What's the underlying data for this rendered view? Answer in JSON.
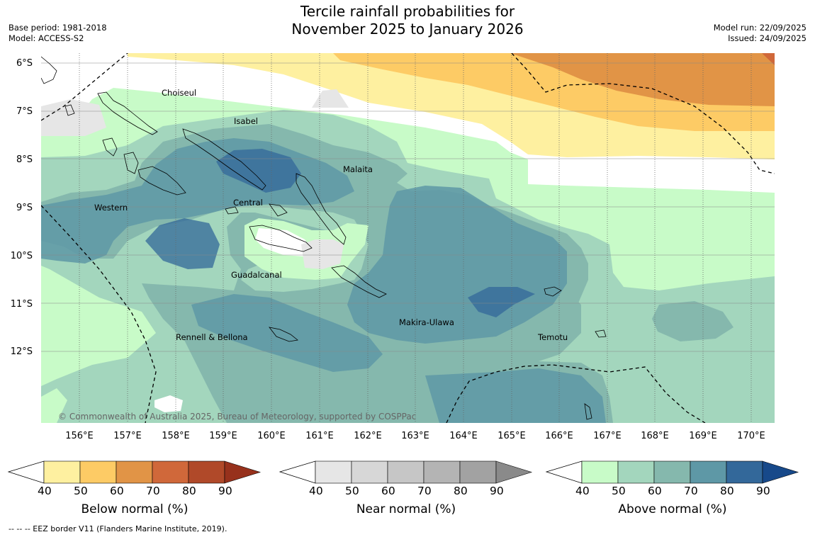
{
  "title": {
    "line1": "Tercile rainfall probabilities for",
    "line2": "November 2025 to January 2026"
  },
  "meta": {
    "base_period": "Base period: 1981-2018",
    "model": "Model: ACCESS-S2",
    "model_run": "Model run: 22/09/2025",
    "issued": "Issued: 24/09/2025"
  },
  "map": {
    "lat_ticks": [
      "6°S",
      "7°S",
      "8°S",
      "9°S",
      "10°S",
      "11°S",
      "12°S"
    ],
    "lon_ticks": [
      "156°E",
      "157°E",
      "158°E",
      "159°E",
      "160°E",
      "161°E",
      "162°E",
      "163°E",
      "164°E",
      "165°E",
      "166°E",
      "167°E",
      "168°E",
      "169°E",
      "170°E"
    ],
    "copyright": "© Commonwealth of Australia 2025, Bureau of Meteorology, supported by COSPPac",
    "provinces": {
      "choiseul": "Choiseul",
      "isabel": "Isabel",
      "malaita": "Malaita",
      "western": "Western",
      "central": "Central",
      "guadalcanal": "Guadalcanal",
      "makira": "Makira-Ulawa",
      "rennell": "Rennell & Bellona",
      "temotu": "Temotu"
    }
  },
  "legend": {
    "below": {
      "label": "Below normal (%)",
      "ticks": [
        "40",
        "50",
        "60",
        "70",
        "80",
        "90"
      ],
      "colors": [
        "#fef0a0",
        "#fdcb65",
        "#e19446",
        "#d0683a",
        "#b04929",
        "#97311c"
      ]
    },
    "near": {
      "label": "Near normal (%)",
      "ticks": [
        "40",
        "50",
        "60",
        "70",
        "80",
        "90"
      ],
      "colors": [
        "#e6e6e6",
        "#d7d7d7",
        "#c6c6c6",
        "#b4b4b4",
        "#a2a2a2",
        "#8a8a8a"
      ]
    },
    "above": {
      "label": "Above normal (%)",
      "ticks": [
        "40",
        "50",
        "60",
        "70",
        "80",
        "90"
      ],
      "colors": [
        "#c8fbc8",
        "#a3d6bd",
        "#85b8ad",
        "#5e98a6",
        "#33689a",
        "#17498a"
      ]
    }
  },
  "footnote": "--  --  -- EEZ border V11 (Flanders Marine Institute, 2019)."
}
